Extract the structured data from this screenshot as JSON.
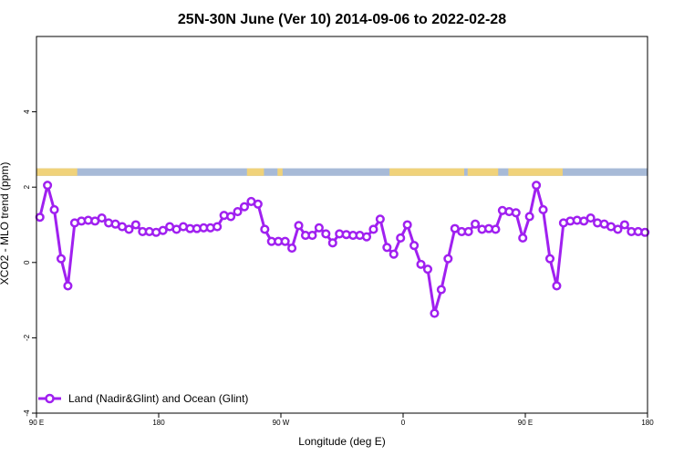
{
  "chart_data": {
    "type": "line",
    "title": "25N-30N June (Ver 10)   2014-09-06 to 2022-02-28",
    "xlabel": "Longitude (deg E)",
    "ylabel": "XCO2 - MLO trend (ppm)",
    "xlim": [
      90,
      450
    ],
    "ylim": [
      -4,
      6
    ],
    "x_ticks": [
      {
        "value": 90,
        "label": "90 E"
      },
      {
        "value": 162,
        "label": "180"
      },
      {
        "value": 234,
        "label": "90 W"
      },
      {
        "value": 306,
        "label": "0"
      },
      {
        "value": 378,
        "label": "90 E"
      },
      {
        "value": 450,
        "label": "180"
      }
    ],
    "y_ticks": [
      {
        "value": -4,
        "label": "-4"
      },
      {
        "value": -2,
        "label": "-2"
      },
      {
        "value": 0,
        "label": "0"
      },
      {
        "value": 2,
        "label": "2"
      },
      {
        "value": 4,
        "label": "4"
      }
    ],
    "grid": false,
    "legend_position": "bottom-left",
    "series": [
      {
        "name": "Land (Nadir&Glint) and Ocean (Glint)",
        "color": "#a020f0",
        "marker": "open-circle",
        "x": [
          92,
          96.5,
          100.5,
          104.5,
          108.5,
          112.5,
          116.5,
          120.5,
          124.5,
          128.5,
          132.5,
          136.5,
          140.5,
          144.5,
          148.5,
          152.5,
          156.5,
          160.5,
          164.5,
          168.5,
          172.5,
          176.5,
          180.5,
          184.5,
          188.5,
          192.5,
          196.5,
          200.5,
          204.5,
          208.5,
          212.5,
          216.5,
          220.5,
          224.5,
          228.5,
          232.5,
          236.5,
          240.5,
          244.5,
          248.5,
          252.5,
          256.5,
          260.5,
          264.5,
          268.5,
          272.5,
          276.5,
          280.5,
          284.5,
          288.5,
          292.5,
          296.5,
          300.5,
          304.5,
          308.5,
          312.5,
          316.5,
          320.5,
          324.5,
          328.5,
          332.5,
          336.5,
          340.5,
          344.5,
          348.5,
          352.5,
          356.5,
          360.5,
          364.5,
          368.5,
          372.5,
          376.5,
          380.5,
          384.5,
          388.5,
          392.5,
          396.5,
          400.5,
          404.5,
          408.5,
          412.5,
          416.5,
          420.5,
          424.5,
          428.5,
          432.5,
          436.5,
          440.5,
          444.5,
          448.5
        ],
        "y": [
          1.2,
          2.05,
          1.4,
          0.1,
          -0.62,
          1.05,
          1.1,
          1.12,
          1.1,
          1.18,
          1.05,
          1.02,
          0.95,
          0.88,
          1.0,
          0.82,
          0.82,
          0.8,
          0.85,
          0.95,
          0.88,
          0.95,
          0.9,
          0.9,
          0.92,
          0.92,
          0.95,
          1.25,
          1.22,
          1.35,
          1.48,
          1.62,
          1.55,
          0.88,
          0.56,
          0.56,
          0.56,
          0.38,
          0.98,
          0.72,
          0.72,
          0.92,
          0.76,
          0.52,
          0.76,
          0.74,
          0.72,
          0.72,
          0.68,
          0.88,
          1.15,
          0.4,
          0.22,
          0.65,
          1.0,
          0.45,
          -0.05,
          -0.18,
          -1.35,
          -0.72,
          0.1,
          0.9,
          0.82,
          0.82,
          1.02,
          0.88,
          0.9,
          0.88,
          1.38,
          1.35,
          1.32,
          0.65,
          1.22,
          2.05,
          1.4,
          0.1,
          -0.62,
          1.05,
          1.1,
          1.12,
          1.1,
          1.18,
          1.05,
          1.02,
          0.95,
          0.88,
          1.0,
          0.82,
          0.82,
          0.8
        ]
      }
    ],
    "surface_band": {
      "y_range": [
        2.3,
        2.5
      ],
      "land_color": "#f0d27a",
      "ocean_color": "#a7bad7",
      "land_longitudes": [
        [
          90,
          114
        ],
        [
          214,
          224
        ],
        [
          232,
          235
        ],
        [
          298,
          342
        ],
        [
          344,
          362
        ],
        [
          368,
          400
        ]
      ]
    }
  }
}
